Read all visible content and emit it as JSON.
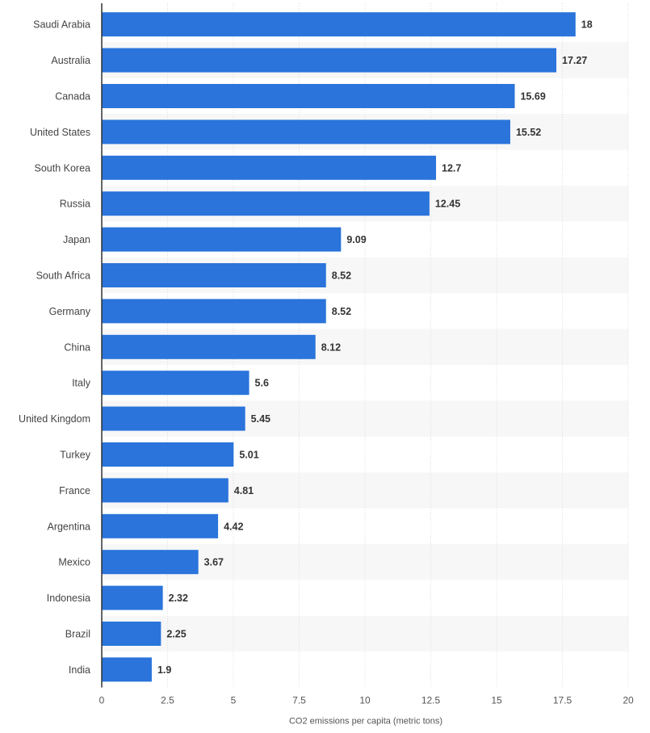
{
  "chart_data": {
    "type": "bar",
    "orientation": "horizontal",
    "title": "",
    "xlabel": "CO2 emissions per capita (metric tons)",
    "ylabel": "",
    "xlim": [
      0,
      20
    ],
    "ticks": [
      0,
      2.5,
      5,
      7.5,
      10,
      12.5,
      15,
      17.5,
      20
    ],
    "tick_labels": [
      "0",
      "2.5",
      "5",
      "7.5",
      "10",
      "12.5",
      "15",
      "17.5",
      "20"
    ],
    "categories": [
      "Saudi Arabia",
      "Australia",
      "Canada",
      "United States",
      "South Korea",
      "Russia",
      "Japan",
      "South Africa",
      "Germany",
      "China",
      "Italy",
      "United Kingdom",
      "Turkey",
      "France",
      "Argentina",
      "Mexico",
      "Indonesia",
      "Brazil",
      "India"
    ],
    "values": [
      18,
      17.27,
      15.69,
      15.52,
      12.7,
      12.45,
      9.09,
      8.52,
      8.52,
      8.12,
      5.6,
      5.45,
      5.01,
      4.81,
      4.42,
      3.67,
      2.32,
      2.25,
      1.9
    ],
    "value_labels": [
      "18",
      "17.27",
      "15.69",
      "15.52",
      "12.7",
      "12.45",
      "9.09",
      "8.52",
      "8.52",
      "8.12",
      "5.6",
      "5.45",
      "5.01",
      "4.81",
      "4.42",
      "3.67",
      "2.32",
      "2.25",
      "1.9"
    ],
    "grid": true,
    "legend": "none",
    "colors": {
      "bar": "#2a74db",
      "band_alt": "#f7f7f7",
      "grid": "#dcdcdc",
      "axis": "#333333"
    }
  }
}
